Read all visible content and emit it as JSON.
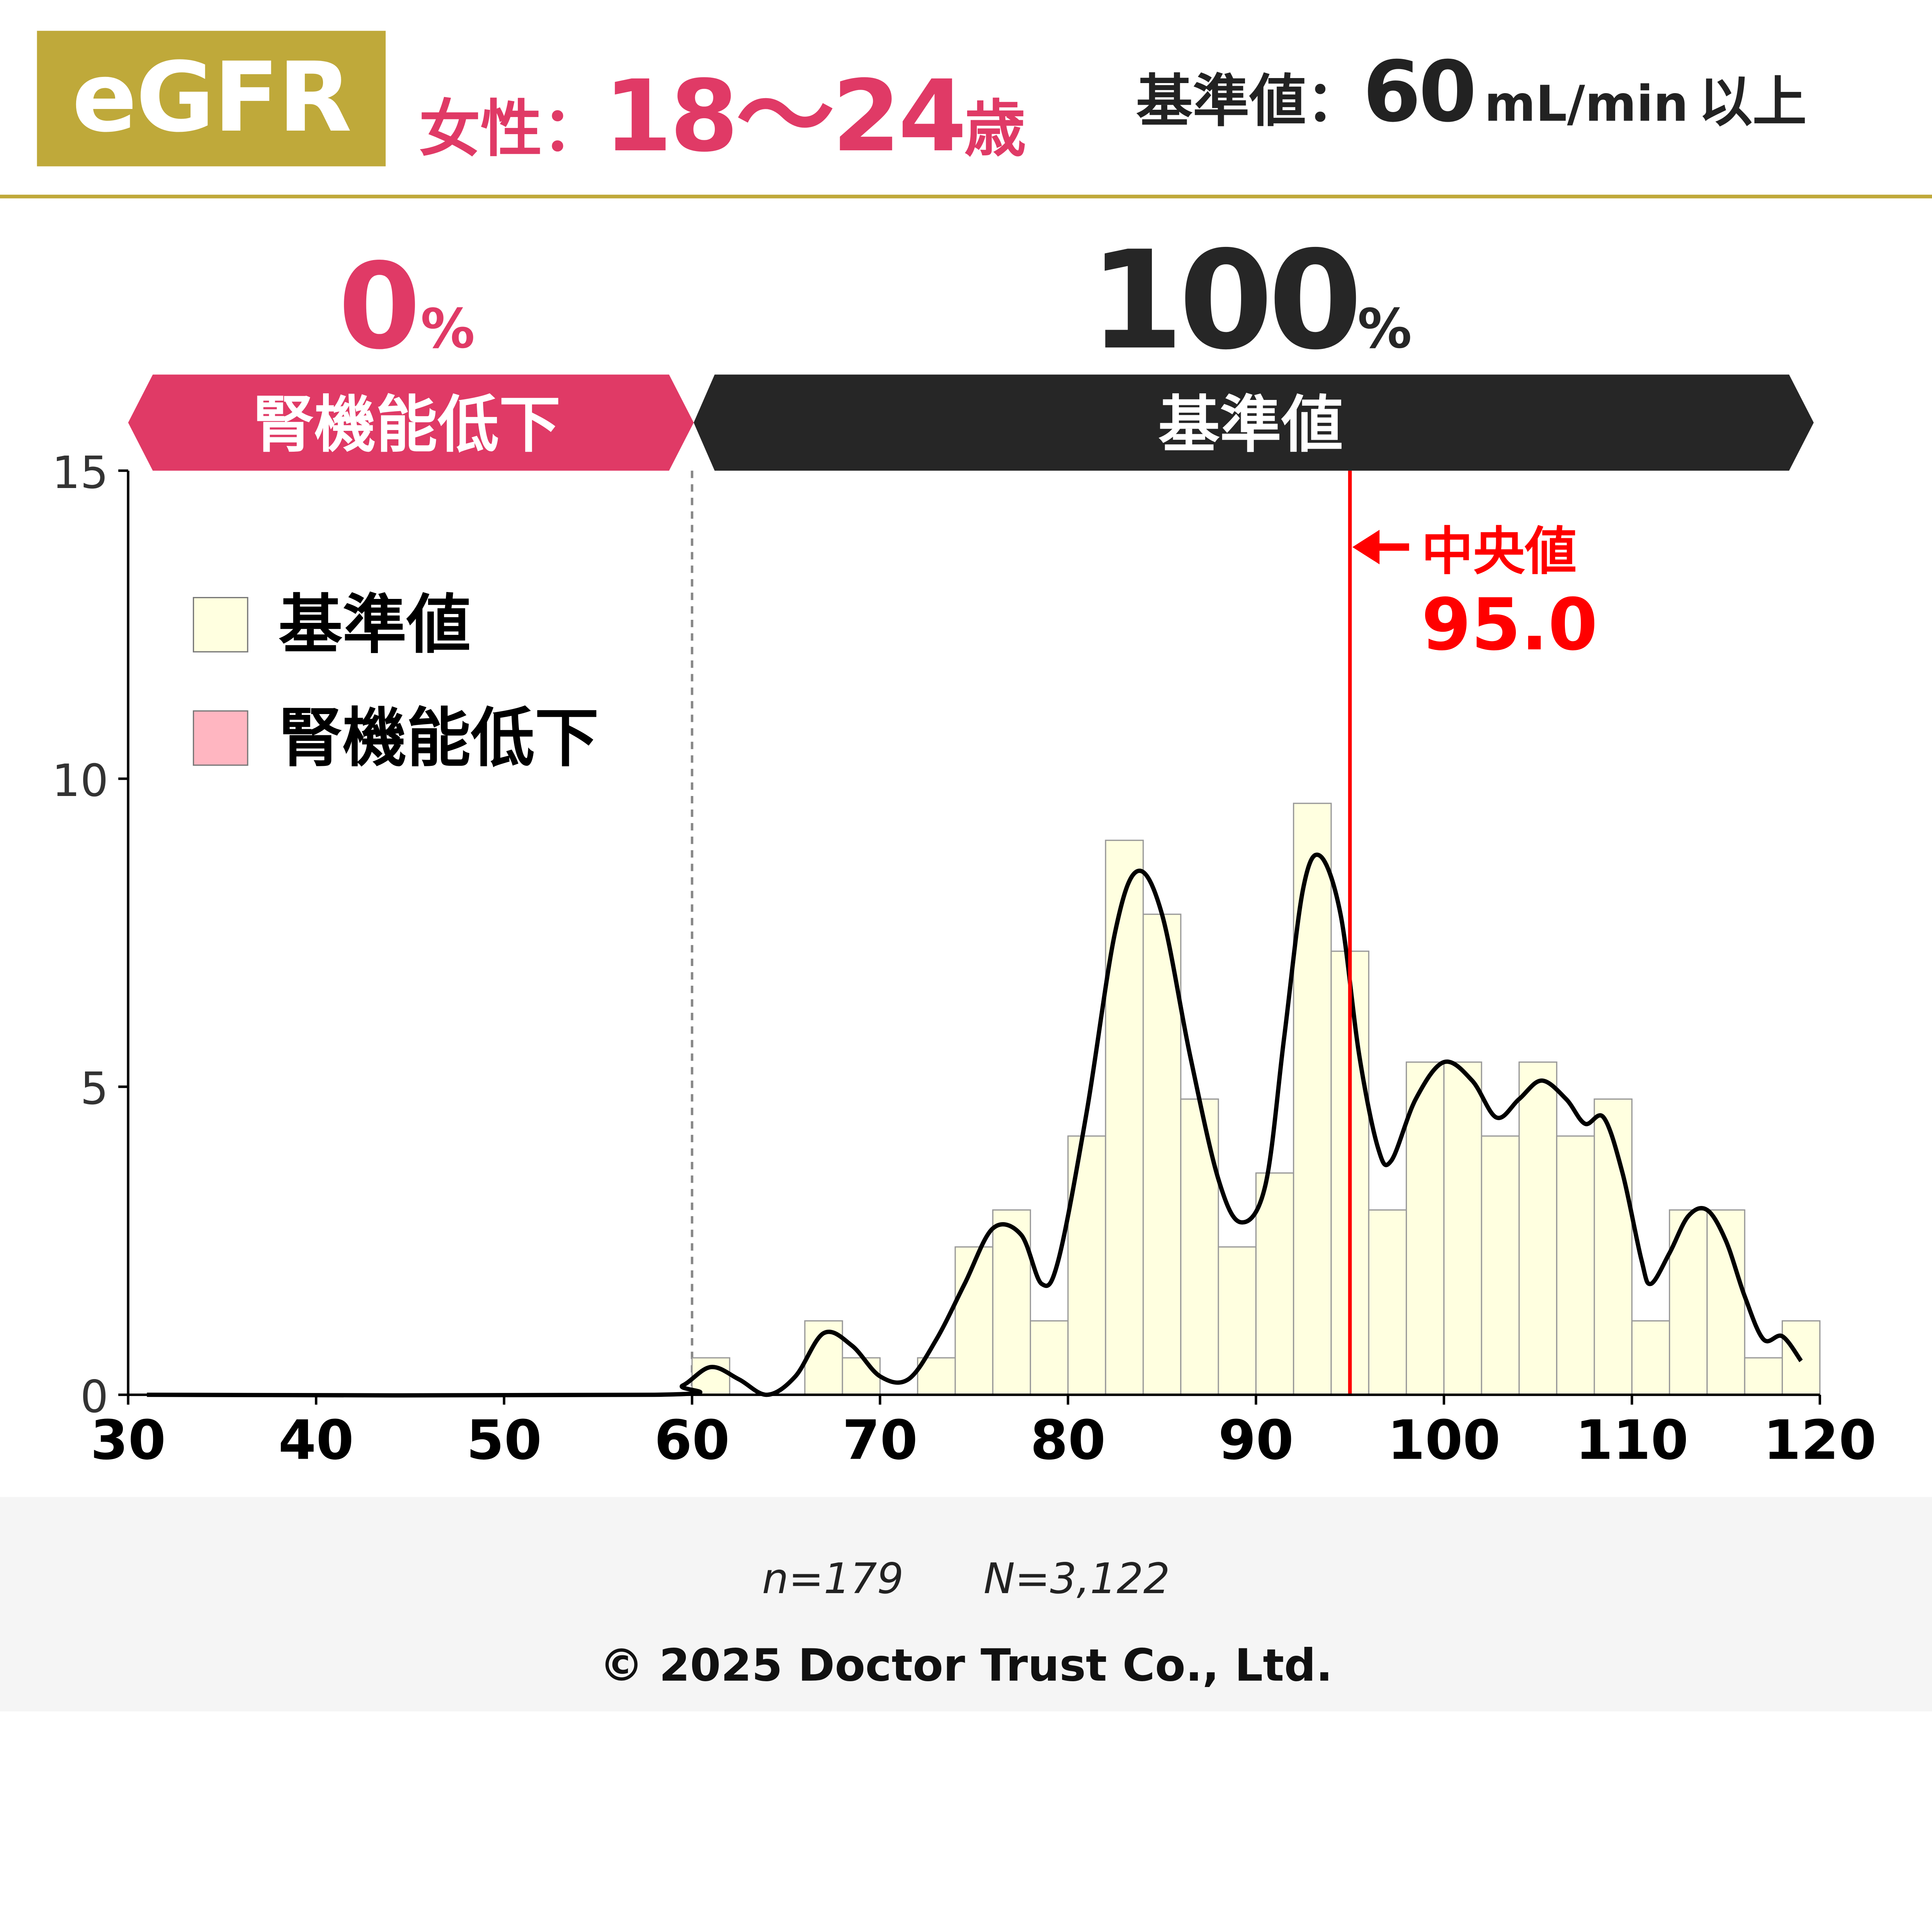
{
  "header": {
    "badge": "eGFR",
    "group_label": "女性：",
    "age_range": "18～24",
    "age_unit": "歳",
    "reference_label": "基準値：",
    "reference_value": "60",
    "reference_unit": "mL/min",
    "reference_suffix": "以上"
  },
  "bands": [
    {
      "name": "low",
      "percent": "0",
      "percent_unit": "%",
      "label": "腎機能低下",
      "color": "#e03a66",
      "range": [
        30,
        60
      ]
    },
    {
      "name": "normal",
      "percent": "100",
      "percent_unit": "%",
      "label": "基準値",
      "color": "#262626",
      "range": [
        60,
        120
      ]
    }
  ],
  "legend": [
    {
      "label": "基準値",
      "color": "#ffffe0"
    },
    {
      "label": "腎機能低下",
      "color": "#ffb6c1"
    }
  ],
  "median": {
    "label": "中央値",
    "value": 95.0,
    "value_text": "95.0",
    "color": "#ff0000"
  },
  "footer": {
    "n": "n=179",
    "N": "N=3,122",
    "copyright": "© 2025 Doctor Trust Co., Ltd."
  },
  "chart_data": {
    "type": "bar",
    "title": "",
    "xlabel": "",
    "ylabel": "",
    "xlim": [
      30,
      120
    ],
    "ylim": [
      0,
      15
    ],
    "xticks": [
      30,
      40,
      50,
      60,
      70,
      80,
      90,
      100,
      110,
      120
    ],
    "yticks": [
      0,
      5,
      10,
      15
    ],
    "threshold": 60,
    "bin_width": 2,
    "bins": [
      {
        "x0": 60,
        "x1": 62,
        "v": 0.6
      },
      {
        "x0": 66,
        "x1": 68,
        "v": 1.2
      },
      {
        "x0": 68,
        "x1": 70,
        "v": 0.6
      },
      {
        "x0": 72,
        "x1": 74,
        "v": 0.6
      },
      {
        "x0": 74,
        "x1": 76,
        "v": 2.4
      },
      {
        "x0": 76,
        "x1": 78,
        "v": 3.0
      },
      {
        "x0": 78,
        "x1": 80,
        "v": 1.2
      },
      {
        "x0": 80,
        "x1": 82,
        "v": 4.2
      },
      {
        "x0": 82,
        "x1": 84,
        "v": 9.0
      },
      {
        "x0": 84,
        "x1": 86,
        "v": 7.8
      },
      {
        "x0": 86,
        "x1": 88,
        "v": 4.8
      },
      {
        "x0": 88,
        "x1": 90,
        "v": 2.4
      },
      {
        "x0": 90,
        "x1": 92,
        "v": 3.6
      },
      {
        "x0": 92,
        "x1": 94,
        "v": 9.6
      },
      {
        "x0": 94,
        "x1": 96,
        "v": 7.2
      },
      {
        "x0": 96,
        "x1": 98,
        "v": 3.0
      },
      {
        "x0": 98,
        "x1": 100,
        "v": 5.4
      },
      {
        "x0": 100,
        "x1": 102,
        "v": 5.4
      },
      {
        "x0": 102,
        "x1": 104,
        "v": 4.2
      },
      {
        "x0": 104,
        "x1": 106,
        "v": 5.4
      },
      {
        "x0": 106,
        "x1": 108,
        "v": 4.2
      },
      {
        "x0": 108,
        "x1": 110,
        "v": 4.8
      },
      {
        "x0": 110,
        "x1": 112,
        "v": 1.2
      },
      {
        "x0": 112,
        "x1": 114,
        "v": 3.0
      },
      {
        "x0": 114,
        "x1": 116,
        "v": 3.0
      },
      {
        "x0": 116,
        "x1": 118,
        "v": 0.6
      },
      {
        "x0": 118,
        "x1": 120,
        "v": 1.2
      }
    ],
    "density_curve": [
      [
        31,
        0
      ],
      [
        58,
        0
      ],
      [
        59.5,
        0.15
      ],
      [
        61,
        0.45
      ],
      [
        62.5,
        0.25
      ],
      [
        64,
        0
      ],
      [
        65.5,
        0.3
      ],
      [
        67,
        1.0
      ],
      [
        68.5,
        0.8
      ],
      [
        70,
        0.3
      ],
      [
        71.5,
        0.25
      ],
      [
        73,
        0.9
      ],
      [
        74.5,
        1.8
      ],
      [
        76,
        2.7
      ],
      [
        77.5,
        2.6
      ],
      [
        78.6,
        1.8
      ],
      [
        79.5,
        2.2
      ],
      [
        81,
        4.6
      ],
      [
        82.5,
        7.5
      ],
      [
        83.7,
        8.5
      ],
      [
        85,
        7.8
      ],
      [
        86.5,
        5.5
      ],
      [
        88,
        3.5
      ],
      [
        89.2,
        2.8
      ],
      [
        90.5,
        3.4
      ],
      [
        91.5,
        5.8
      ],
      [
        92.5,
        8.2
      ],
      [
        93.4,
        8.75
      ],
      [
        94.5,
        7.8
      ],
      [
        95.5,
        5.5
      ],
      [
        96.5,
        4.0
      ],
      [
        97.2,
        3.8
      ],
      [
        98.5,
        4.8
      ],
      [
        100,
        5.4
      ],
      [
        101.5,
        5.1
      ],
      [
        102.8,
        4.5
      ],
      [
        104,
        4.8
      ],
      [
        105.2,
        5.1
      ],
      [
        106.5,
        4.8
      ],
      [
        107.5,
        4.4
      ],
      [
        108.5,
        4.5
      ],
      [
        109.5,
        3.6
      ],
      [
        110.5,
        2.2
      ],
      [
        111,
        1.8
      ],
      [
        112,
        2.3
      ],
      [
        113,
        2.9
      ],
      [
        114,
        3.0
      ],
      [
        115,
        2.5
      ],
      [
        116,
        1.6
      ],
      [
        117,
        0.9
      ],
      [
        118,
        0.95
      ],
      [
        119,
        0.55
      ]
    ]
  }
}
